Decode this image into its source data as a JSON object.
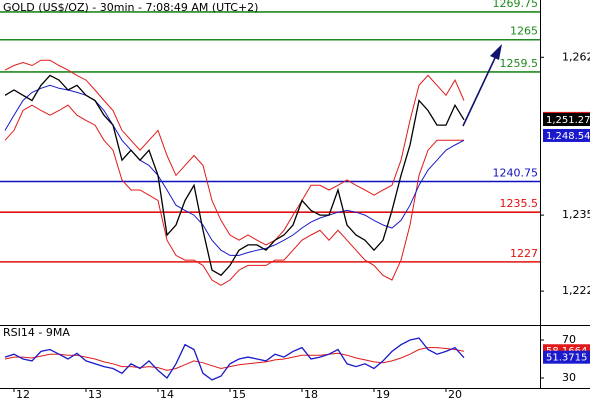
{
  "chart_data": [
    {
      "type": "line",
      "title": "GOLD (US$/OZ) - 30min - 7:08:49 AM (UTC+2)",
      "categories": [
        null,
        "12",
        null,
        null,
        null,
        null,
        null,
        null,
        null,
        "13",
        null,
        null,
        null,
        null,
        null,
        null,
        null,
        "14",
        null,
        null,
        null,
        null,
        null,
        null,
        null,
        "15",
        null,
        null,
        null,
        null,
        null,
        null,
        null,
        "18",
        null,
        null,
        null,
        null,
        null,
        null,
        null,
        "19",
        null,
        null,
        null,
        null,
        null,
        null,
        null,
        "20",
        null,
        null
      ],
      "ylim": [
        1216.2,
        1271.8
      ],
      "yticks": [
        {
          "value": 1262,
          "label": "1,262"
        },
        {
          "value": 1235,
          "label": "1,235"
        },
        {
          "value": 1222,
          "label": "1,222"
        }
      ],
      "series": [
        {
          "color": "#e01a1a",
          "values": [
            1259.8,
            1260.6,
            1261.1,
            1260.6,
            1261.5,
            1261.5,
            1260.6,
            1259.8,
            1258.9,
            1258.1,
            1256.4,
            1254.6,
            1252.9,
            1249.5,
            1247.8,
            1246.1,
            1247.8,
            1249.5,
            1245.2,
            1241.8,
            1243.5,
            1245.2,
            1243.5,
            1237.5,
            1234.1,
            1231.6,
            1230.7,
            1231.6,
            1230.7,
            1229.9,
            1230.7,
            1232.4,
            1235.0,
            1237.5,
            1240.1,
            1240.1,
            1239.3,
            1240.1,
            1241.0,
            1240.1,
            1239.3,
            1238.4,
            1239.3,
            1240.1,
            1244.4,
            1251.2,
            1257.2,
            1258.9,
            1257.2,
            1255.5,
            1258.1,
            1254.6
          ]
        },
        {
          "color": "#e01a1a",
          "values": [
            1247.8,
            1249.5,
            1252.9,
            1253.8,
            1252.9,
            1252.1,
            1252.9,
            1253.8,
            1252.1,
            1251.2,
            1250.4,
            1247.8,
            1246.1,
            1241.0,
            1239.3,
            1239.3,
            1238.4,
            1237.5,
            1230.7,
            1228.1,
            1227.3,
            1227.3,
            1226.4,
            1223.9,
            1223.0,
            1223.9,
            1225.6,
            1226.4,
            1226.4,
            1226.4,
            1227.3,
            1227.3,
            1229.0,
            1230.7,
            1231.6,
            1232.4,
            1230.7,
            1232.4,
            1230.7,
            1229.0,
            1227.3,
            1226.4,
            1224.7,
            1223.9,
            1227.3,
            1233.3,
            1241.8,
            1246.1,
            1247.8,
            1247.8,
            1247.8,
            1247.8
          ]
        },
        {
          "color": "#1a1acc",
          "values": [
            1249.5,
            1252.1,
            1254.6,
            1256.0,
            1256.7,
            1257.2,
            1256.7,
            1256.4,
            1256.0,
            1255.5,
            1254.6,
            1252.9,
            1250.4,
            1247.8,
            1246.1,
            1244.4,
            1243.5,
            1241.8,
            1239.3,
            1236.7,
            1235.8,
            1235.0,
            1233.3,
            1230.7,
            1229.0,
            1228.1,
            1228.1,
            1228.6,
            1229.0,
            1229.3,
            1229.9,
            1230.7,
            1231.6,
            1232.8,
            1233.8,
            1234.5,
            1235.0,
            1235.5,
            1235.8,
            1235.5,
            1235.0,
            1234.1,
            1233.3,
            1232.8,
            1234.1,
            1236.7,
            1240.1,
            1242.7,
            1244.4,
            1246.1,
            1247.0,
            1247.8
          ]
        },
        {
          "color": "#000000",
          "values": [
            1255.5,
            1256.4,
            1255.5,
            1254.6,
            1257.2,
            1258.9,
            1258.1,
            1256.4,
            1257.2,
            1255.5,
            1254.6,
            1252.1,
            1250.4,
            1244.4,
            1246.1,
            1244.4,
            1246.1,
            1241.8,
            1231.6,
            1233.3,
            1237.5,
            1240.1,
            1232.4,
            1225.6,
            1224.7,
            1226.4,
            1229.0,
            1229.9,
            1229.9,
            1229.0,
            1230.7,
            1231.6,
            1233.3,
            1237.5,
            1235.8,
            1235.0,
            1235.0,
            1239.3,
            1233.3,
            1231.6,
            1230.7,
            1229.0,
            1230.7,
            1235.8,
            1241.8,
            1247.0,
            1254.6,
            1252.9,
            1250.4,
            1250.4,
            1253.8,
            1251.3
          ]
        }
      ],
      "levels": [
        {
          "value": 1269.75,
          "color": "#1f8a1f"
        },
        {
          "value": 1265,
          "color": "#1f8a1f"
        },
        {
          "value": 1259.5,
          "color": "#1f8a1f"
        },
        {
          "value": 1240.75,
          "color": "#1010c0"
        },
        {
          "value": 1235.5,
          "color": "#e01010"
        },
        {
          "value": 1227,
          "color": "#e01010"
        }
      ],
      "price_tags": [
        {
          "value": 1251.46,
          "label": "1,251.46",
          "color": "#e0191a"
        },
        {
          "value": 1251.27,
          "label": "1,251.27",
          "color": "#000000"
        },
        {
          "value": 1248.54,
          "label": "1,248.54",
          "color": "#1a1acc"
        }
      ]
    },
    {
      "type": "line",
      "title": "RSI14 - 9MA",
      "ylim": [
        19.5,
        82.6
      ],
      "yticks": [
        70,
        30
      ],
      "series": [
        {
          "color": "#e01a1a",
          "values": [
            50,
            52,
            52,
            51,
            53,
            55,
            55,
            54,
            54,
            52,
            50,
            47,
            45,
            42,
            42,
            41,
            42,
            41,
            38,
            40,
            44,
            48,
            46,
            43,
            40,
            42,
            44,
            45,
            46,
            47,
            49,
            50,
            52,
            54,
            54,
            54,
            55,
            56,
            54,
            51,
            49,
            47,
            46,
            48,
            51,
            55,
            60,
            62,
            62,
            61,
            60,
            58.2
          ]
        },
        {
          "color": "#1a1acc",
          "values": [
            52,
            55,
            50,
            48,
            58,
            60,
            55,
            50,
            56,
            48,
            45,
            42,
            40,
            35,
            45,
            40,
            48,
            38,
            30,
            45,
            65,
            60,
            35,
            28,
            32,
            45,
            50,
            52,
            50,
            48,
            55,
            52,
            58,
            62,
            50,
            52,
            55,
            60,
            45,
            42,
            45,
            40,
            48,
            58,
            65,
            70,
            72,
            60,
            55,
            58,
            62,
            51.4
          ]
        }
      ],
      "price_tags": [
        {
          "value": 58.1664,
          "color": "#e0191a"
        },
        {
          "value": 51.3715,
          "color": "#1a1acc"
        }
      ]
    }
  ]
}
